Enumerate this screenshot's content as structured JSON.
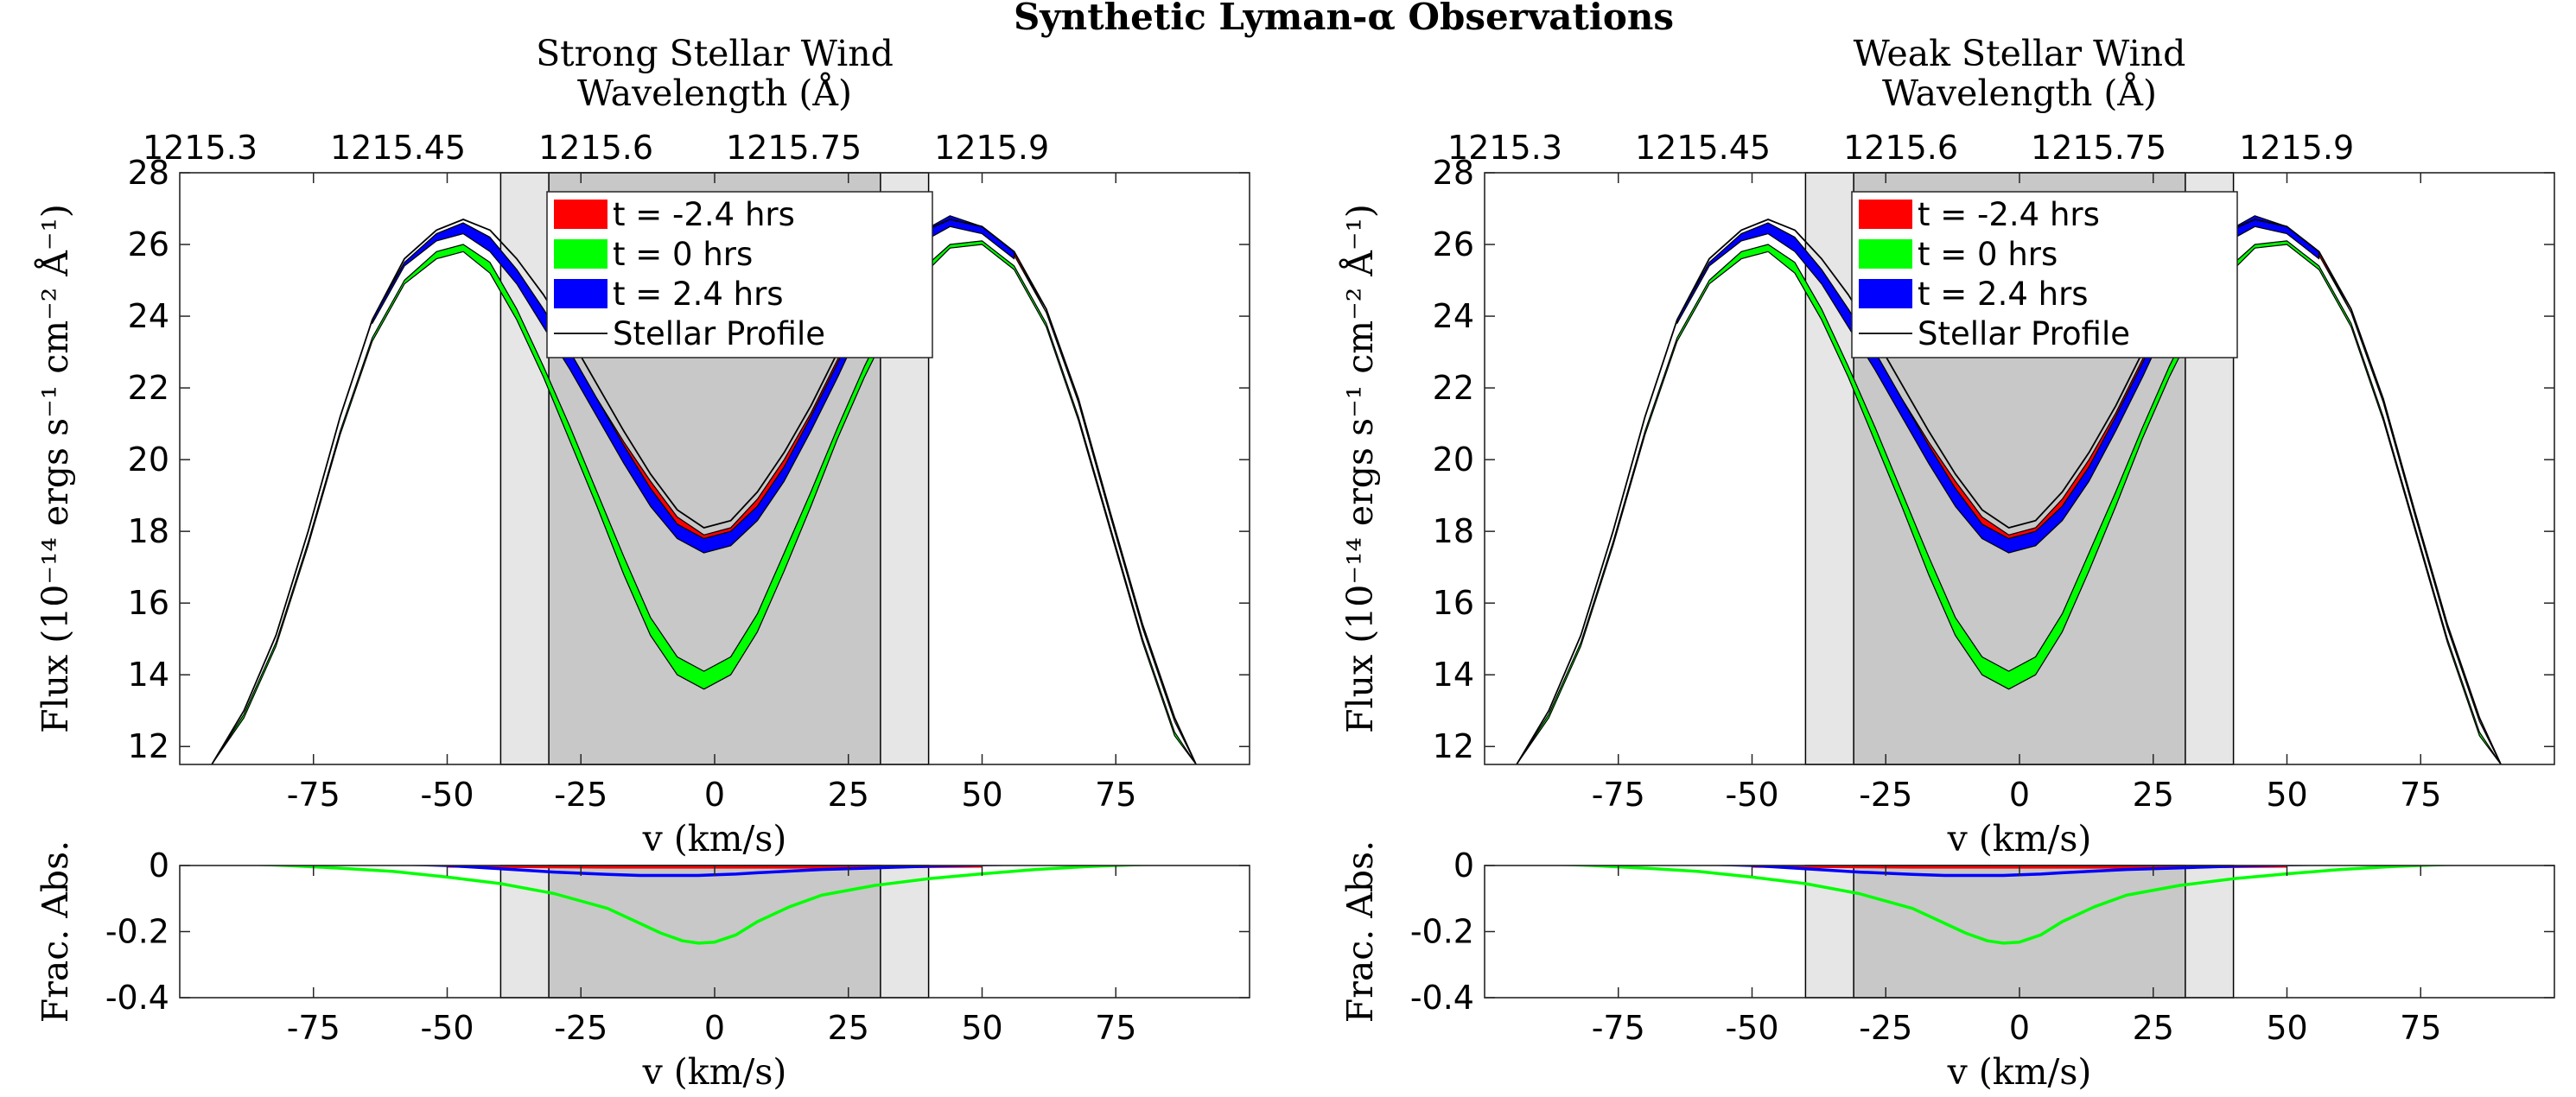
{
  "figure": {
    "title": "Synthetic Lyman-α Observations"
  },
  "colors": {
    "t_minus": "#ff0000",
    "t_zero": "#00ff00",
    "t_plus": "#0000ff",
    "stellar": "#000000",
    "band_outer": "#e6e6e6",
    "band_inner": "#c8c8c8"
  },
  "chart_data": [
    {
      "type": "line",
      "panel": "left-top",
      "title": "Strong Stellar Wind",
      "top_axis_label": "Wavelength (Å)",
      "top_ticks": [
        "1215.3",
        "1215.45",
        "1215.6",
        "1215.75",
        "1215.9"
      ],
      "top_tick_vel": [
        -96.2,
        -59.2,
        -22.2,
        14.8,
        51.8
      ],
      "xlabel": "v (km/s)",
      "ylabel": "Flux (10⁻¹⁴ ergs s⁻¹ cm⁻² Å⁻¹)",
      "xlim": [
        -100,
        100
      ],
      "ylim": [
        11.5,
        28
      ],
      "xticks": [
        -75,
        -50,
        -25,
        0,
        25,
        50,
        75
      ],
      "yticks": [
        12,
        14,
        16,
        18,
        20,
        22,
        24,
        26,
        28
      ],
      "bands": {
        "outer": [
          -40,
          40
        ],
        "inner": [
          -31,
          31
        ]
      },
      "x": [
        -94,
        -88,
        -82,
        -76,
        -70,
        -64,
        -58,
        -52,
        -47,
        -42,
        -37,
        -32,
        -27,
        -22,
        -17,
        -12,
        -7,
        -2,
        3,
        8,
        13,
        18,
        23,
        28,
        33,
        38,
        44,
        50,
        56,
        62,
        68,
        74,
        80,
        86,
        90
      ],
      "series": [
        {
          "name": "t = -2.4 hrs",
          "low": [
            11.5,
            13.0,
            15.1,
            18.0,
            21.2,
            23.9,
            25.5,
            26.2,
            26.4,
            26.0,
            25.1,
            24.0,
            22.8,
            21.5,
            20.3,
            19.2,
            18.2,
            17.7,
            17.9,
            18.7,
            19.8,
            21.1,
            22.6,
            24.1,
            25.3,
            26.1,
            26.6,
            26.4,
            25.7,
            24.1,
            21.6,
            18.4,
            15.3,
            12.7,
            11.5
          ],
          "high": [
            11.5,
            13.0,
            15.1,
            18.0,
            21.2,
            23.9,
            25.5,
            26.3,
            26.6,
            26.2,
            25.3,
            24.2,
            23.0,
            21.7,
            20.5,
            19.4,
            18.4,
            17.9,
            18.1,
            18.9,
            20.0,
            21.3,
            22.8,
            24.3,
            25.5,
            26.3,
            26.7,
            26.5,
            25.8,
            24.1,
            21.6,
            18.4,
            15.3,
            12.7,
            11.5
          ]
        },
        {
          "name": "t = 0 hrs",
          "low": [
            11.5,
            12.8,
            14.8,
            17.6,
            20.7,
            23.3,
            24.9,
            25.6,
            25.8,
            25.2,
            23.9,
            22.3,
            20.5,
            18.7,
            16.8,
            15.1,
            14.0,
            13.6,
            14.0,
            15.2,
            16.9,
            18.7,
            20.6,
            22.3,
            23.8,
            25.0,
            25.9,
            26.0,
            25.3,
            23.7,
            21.1,
            18.0,
            14.9,
            12.3,
            11.5
          ],
          "high": [
            11.5,
            12.9,
            14.9,
            17.7,
            20.8,
            23.4,
            25.0,
            25.8,
            26.0,
            25.5,
            24.2,
            22.6,
            20.9,
            19.1,
            17.3,
            15.6,
            14.5,
            14.1,
            14.5,
            15.7,
            17.4,
            19.1,
            20.9,
            22.6,
            24.1,
            25.2,
            26.0,
            26.1,
            25.4,
            23.8,
            21.2,
            18.1,
            15.0,
            12.4,
            11.5
          ]
        },
        {
          "name": "t = 2.4 hrs",
          "low": [
            null,
            null,
            null,
            null,
            null,
            23.8,
            25.4,
            26.1,
            26.3,
            25.8,
            24.9,
            23.7,
            22.5,
            21.2,
            19.9,
            18.7,
            17.8,
            17.4,
            17.6,
            18.3,
            19.4,
            20.8,
            22.3,
            23.9,
            25.1,
            26.0,
            26.5,
            26.3,
            25.6,
            null,
            null,
            null,
            null,
            null,
            null
          ],
          "high": [
            null,
            null,
            null,
            null,
            null,
            23.9,
            25.5,
            26.3,
            26.6,
            26.2,
            25.3,
            24.2,
            23.0,
            21.7,
            20.4,
            19.2,
            18.2,
            17.8,
            18.0,
            18.7,
            19.8,
            21.2,
            22.7,
            24.3,
            25.5,
            26.3,
            26.8,
            26.5,
            25.8,
            null,
            null,
            null,
            null,
            null,
            null
          ]
        },
        {
          "name": "Stellar Profile",
          "values": [
            11.5,
            13.0,
            15.1,
            18.0,
            21.2,
            23.9,
            25.6,
            26.4,
            26.7,
            26.4,
            25.6,
            24.6,
            23.4,
            22.1,
            20.8,
            19.6,
            18.6,
            18.1,
            18.3,
            19.1,
            20.2,
            21.5,
            23.0,
            24.5,
            25.6,
            26.3,
            26.7,
            26.5,
            25.8,
            24.2,
            21.7,
            18.5,
            15.4,
            12.8,
            11.5
          ]
        }
      ]
    },
    {
      "type": "line",
      "panel": "left-bottom",
      "xlabel": "v (km/s)",
      "ylabel": "Frac. Abs.",
      "xlim": [
        -100,
        100
      ],
      "ylim": [
        -0.4,
        0.0
      ],
      "xticks": [
        -75,
        -50,
        -25,
        0,
        25,
        50,
        75
      ],
      "yticks": [
        0,
        -0.2,
        -0.4
      ],
      "bands": {
        "outer": [
          -40,
          40
        ],
        "inner": [
          -31,
          31
        ]
      },
      "x": [
        -88,
        -80,
        -70,
        -60,
        -50,
        -40,
        -30,
        -20,
        -14,
        -10,
        -6,
        -3,
        0,
        4,
        8,
        14,
        20,
        30,
        40,
        50,
        60,
        70,
        80,
        88
      ],
      "series": [
        {
          "name": "t = -2.4 hrs",
          "values": [
            null,
            null,
            null,
            null,
            -0.002,
            -0.003,
            -0.004,
            -0.005,
            -0.005,
            -0.005,
            -0.005,
            -0.005,
            -0.005,
            -0.005,
            -0.005,
            -0.005,
            -0.005,
            -0.004,
            -0.003,
            -0.002,
            null,
            null,
            null,
            null
          ]
        },
        {
          "name": "t = 0 hrs",
          "values": [
            0.005,
            0.0,
            -0.008,
            -0.018,
            -0.035,
            -0.055,
            -0.085,
            -0.13,
            -0.175,
            -0.205,
            -0.228,
            -0.235,
            -0.232,
            -0.21,
            -0.17,
            -0.125,
            -0.09,
            -0.06,
            -0.04,
            -0.025,
            -0.012,
            -0.003,
            0.003,
            0.005
          ]
        },
        {
          "name": "t = 2.4 hrs",
          "values": [
            null,
            null,
            null,
            0.005,
            0.0,
            -0.01,
            -0.02,
            -0.027,
            -0.03,
            -0.03,
            -0.03,
            -0.03,
            -0.028,
            -0.026,
            -0.022,
            -0.017,
            -0.012,
            -0.007,
            -0.002,
            0.002,
            0.005,
            null,
            null,
            null
          ]
        }
      ]
    },
    {
      "type": "line",
      "panel": "right-top",
      "title": "Weak Stellar Wind",
      "top_axis_label": "Wavelength (Å)",
      "top_ticks": [
        "1215.3",
        "1215.45",
        "1215.6",
        "1215.75",
        "1215.9"
      ],
      "top_tick_vel": [
        -96.2,
        -59.2,
        -22.2,
        14.8,
        51.8
      ],
      "xlabel": "v (km/s)",
      "ylabel": "Flux (10⁻¹⁴ ergs s⁻¹ cm⁻² Å⁻¹)",
      "xlim": [
        -100,
        100
      ],
      "ylim": [
        11.5,
        28
      ],
      "xticks": [
        -75,
        -50,
        -25,
        0,
        25,
        50,
        75
      ],
      "yticks": [
        12,
        14,
        16,
        18,
        20,
        22,
        24,
        26,
        28
      ],
      "bands": {
        "outer": [
          -40,
          40
        ],
        "inner": [
          -31,
          31
        ]
      },
      "x": [
        -94,
        -88,
        -82,
        -76,
        -70,
        -64,
        -58,
        -52,
        -47,
        -42,
        -37,
        -32,
        -27,
        -22,
        -17,
        -12,
        -7,
        -2,
        3,
        8,
        13,
        18,
        23,
        28,
        33,
        38,
        44,
        50,
        56,
        62,
        68,
        74,
        80,
        86,
        90
      ],
      "series": [
        {
          "name": "t = -2.4 hrs",
          "low": [
            11.5,
            13.0,
            15.1,
            18.0,
            21.2,
            23.9,
            25.5,
            26.2,
            26.4,
            26.0,
            25.1,
            24.0,
            22.8,
            21.5,
            20.3,
            19.2,
            18.2,
            17.7,
            17.9,
            18.7,
            19.8,
            21.1,
            22.6,
            24.1,
            25.3,
            26.1,
            26.6,
            26.4,
            25.7,
            24.1,
            21.6,
            18.4,
            15.3,
            12.7,
            11.5
          ],
          "high": [
            11.5,
            13.0,
            15.1,
            18.0,
            21.2,
            23.9,
            25.5,
            26.3,
            26.6,
            26.2,
            25.3,
            24.2,
            23.0,
            21.7,
            20.5,
            19.4,
            18.4,
            17.9,
            18.1,
            18.9,
            20.0,
            21.3,
            22.8,
            24.3,
            25.5,
            26.3,
            26.7,
            26.5,
            25.8,
            24.1,
            21.6,
            18.4,
            15.3,
            12.7,
            11.5
          ]
        },
        {
          "name": "t = 0 hrs",
          "low": [
            11.5,
            12.8,
            14.8,
            17.6,
            20.7,
            23.3,
            24.9,
            25.6,
            25.8,
            25.2,
            23.9,
            22.3,
            20.5,
            18.7,
            16.8,
            15.1,
            14.0,
            13.6,
            14.0,
            15.2,
            16.9,
            18.7,
            20.6,
            22.3,
            23.8,
            25.0,
            25.9,
            26.0,
            25.3,
            23.7,
            21.1,
            18.0,
            14.9,
            12.3,
            11.5
          ],
          "high": [
            11.5,
            12.9,
            14.9,
            17.7,
            20.8,
            23.4,
            25.0,
            25.8,
            26.0,
            25.5,
            24.2,
            22.6,
            20.9,
            19.1,
            17.3,
            15.6,
            14.5,
            14.1,
            14.5,
            15.7,
            17.4,
            19.1,
            20.9,
            22.6,
            24.1,
            25.2,
            26.0,
            26.1,
            25.4,
            23.8,
            21.2,
            18.1,
            15.0,
            12.4,
            11.5
          ]
        },
        {
          "name": "t = 2.4 hrs",
          "low": [
            null,
            null,
            null,
            null,
            null,
            23.8,
            25.4,
            26.1,
            26.3,
            25.8,
            24.9,
            23.7,
            22.5,
            21.2,
            19.9,
            18.7,
            17.8,
            17.4,
            17.6,
            18.3,
            19.4,
            20.8,
            22.3,
            23.9,
            25.1,
            26.0,
            26.5,
            26.3,
            25.6,
            null,
            null,
            null,
            null,
            null,
            null
          ],
          "high": [
            null,
            null,
            null,
            null,
            null,
            23.9,
            25.5,
            26.3,
            26.6,
            26.2,
            25.3,
            24.2,
            23.0,
            21.7,
            20.4,
            19.2,
            18.2,
            17.8,
            18.0,
            18.7,
            19.8,
            21.2,
            22.7,
            24.3,
            25.5,
            26.3,
            26.8,
            26.5,
            25.8,
            null,
            null,
            null,
            null,
            null,
            null
          ]
        },
        {
          "name": "Stellar Profile",
          "values": [
            11.5,
            13.0,
            15.1,
            18.0,
            21.2,
            23.9,
            25.6,
            26.4,
            26.7,
            26.4,
            25.6,
            24.6,
            23.4,
            22.1,
            20.8,
            19.6,
            18.6,
            18.1,
            18.3,
            19.1,
            20.2,
            21.5,
            23.0,
            24.5,
            25.6,
            26.3,
            26.7,
            26.5,
            25.8,
            24.2,
            21.7,
            18.5,
            15.4,
            12.8,
            11.5
          ]
        }
      ]
    },
    {
      "type": "line",
      "panel": "right-bottom",
      "xlabel": "v (km/s)",
      "ylabel": "Frac. Abs.",
      "xlim": [
        -100,
        100
      ],
      "ylim": [
        -0.4,
        0.0
      ],
      "xticks": [
        -75,
        -50,
        -25,
        0,
        25,
        50,
        75
      ],
      "yticks": [
        0,
        -0.2,
        -0.4
      ],
      "bands": {
        "outer": [
          -40,
          40
        ],
        "inner": [
          -31,
          31
        ]
      },
      "x": [
        -88,
        -80,
        -70,
        -60,
        -50,
        -40,
        -30,
        -20,
        -14,
        -10,
        -6,
        -3,
        0,
        4,
        8,
        14,
        20,
        30,
        40,
        50,
        60,
        70,
        80,
        88
      ],
      "series": [
        {
          "name": "t = -2.4 hrs",
          "values": [
            null,
            null,
            null,
            null,
            -0.002,
            -0.003,
            -0.004,
            -0.005,
            -0.005,
            -0.005,
            -0.005,
            -0.005,
            -0.005,
            -0.005,
            -0.005,
            -0.005,
            -0.005,
            -0.004,
            -0.003,
            -0.002,
            null,
            null,
            null,
            null
          ]
        },
        {
          "name": "t = 0 hrs",
          "values": [
            0.005,
            0.0,
            -0.008,
            -0.018,
            -0.035,
            -0.055,
            -0.085,
            -0.13,
            -0.175,
            -0.205,
            -0.228,
            -0.235,
            -0.232,
            -0.21,
            -0.17,
            -0.125,
            -0.09,
            -0.06,
            -0.04,
            -0.025,
            -0.012,
            -0.003,
            0.003,
            0.005
          ]
        },
        {
          "name": "t = 2.4 hrs",
          "values": [
            null,
            null,
            null,
            0.005,
            0.0,
            -0.01,
            -0.02,
            -0.027,
            -0.03,
            -0.03,
            -0.03,
            -0.03,
            -0.028,
            -0.026,
            -0.022,
            -0.017,
            -0.012,
            -0.007,
            -0.002,
            0.002,
            0.005,
            null,
            null,
            null
          ]
        }
      ]
    }
  ]
}
